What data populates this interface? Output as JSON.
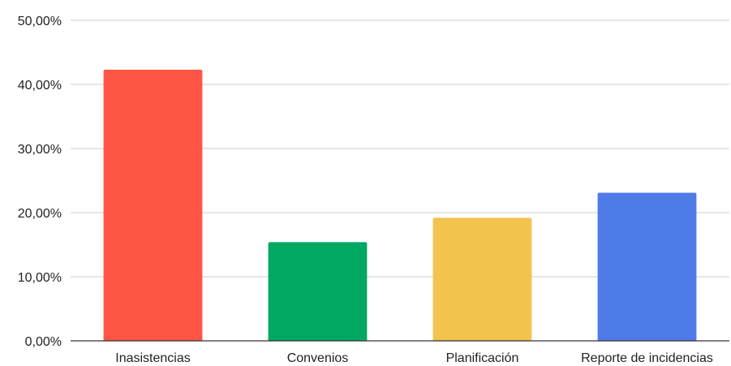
{
  "chart_data": {
    "type": "bar",
    "categories": [
      "Inasistencias",
      "Convenios",
      "Planificación",
      "Reporte de incidencias"
    ],
    "values": [
      42.3,
      15.4,
      19.2,
      23.1
    ],
    "colors": [
      "#ff5544",
      "#00a862",
      "#f2c44d",
      "#4f7be8"
    ],
    "ylim": [
      0,
      50
    ],
    "yticks": [
      {
        "value": 0,
        "label": "0,00%"
      },
      {
        "value": 10,
        "label": "10,00%"
      },
      {
        "value": 20,
        "label": "20,00%"
      },
      {
        "value": 30,
        "label": "30,00%"
      },
      {
        "value": 40,
        "label": "40,00%"
      },
      {
        "value": 50,
        "label": "50,00%"
      }
    ],
    "grid": true,
    "title": "",
    "xlabel": "",
    "ylabel": ""
  }
}
